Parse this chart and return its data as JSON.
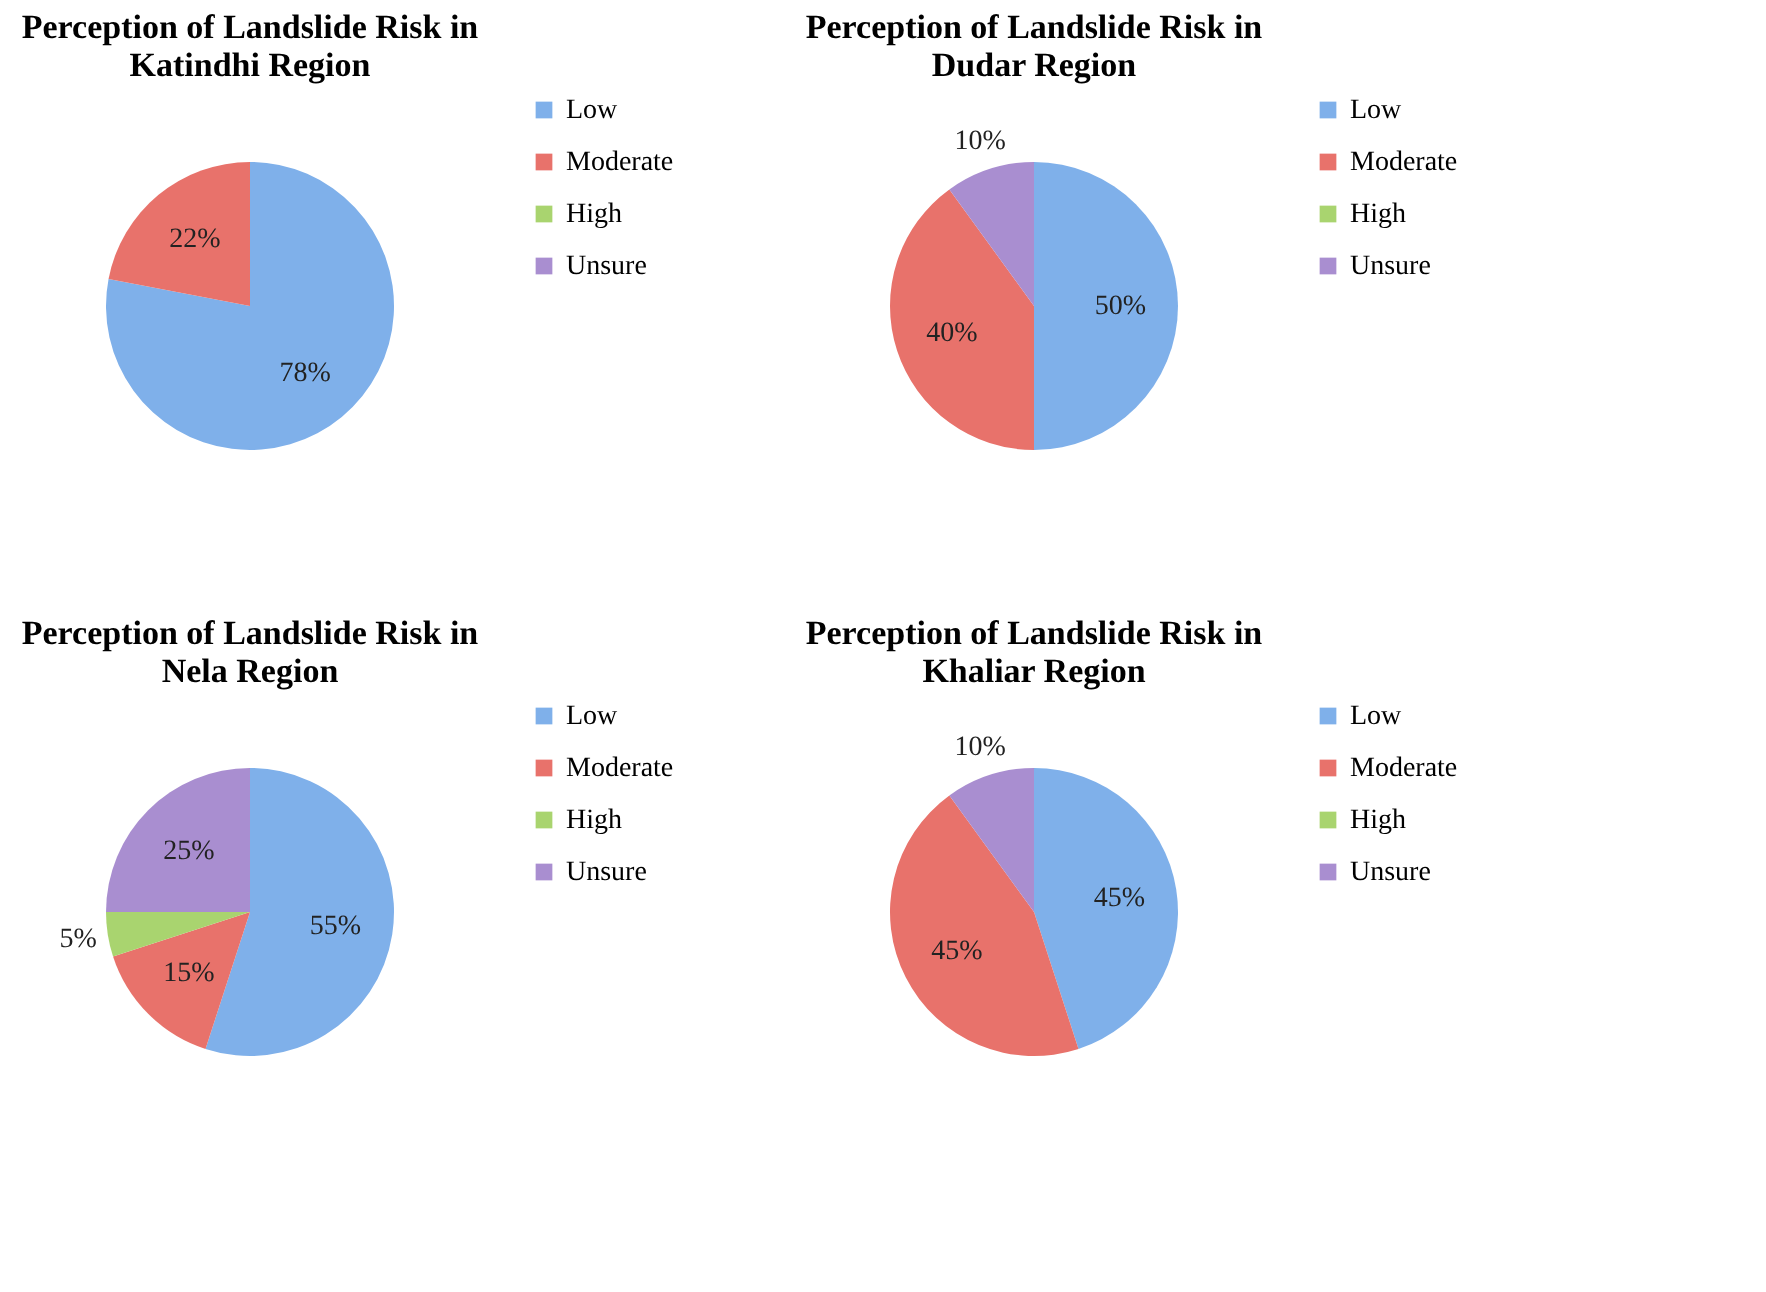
{
  "chart_data": [
    {
      "type": "pie",
      "title": [
        "Perception of Landslide Risk in",
        "Katindhi Region"
      ],
      "categories": [
        "Low",
        "Moderate",
        "High",
        "Unsure"
      ],
      "values": [
        78,
        22,
        0,
        0
      ],
      "colors": [
        "#7fb0ea",
        "#e8726b",
        "#a9d46f",
        "#a98ed0"
      ],
      "value_labels": [
        "78%",
        "22%",
        null,
        null
      ],
      "legend": "right"
    },
    {
      "type": "pie",
      "title": [
        "Perception of Landslide Risk in",
        "Dudar Region"
      ],
      "categories": [
        "Low",
        "Moderate",
        "High",
        "Unsure"
      ],
      "values": [
        50,
        40,
        0,
        10
      ],
      "colors": [
        "#7fb0ea",
        "#e8726b",
        "#a9d46f",
        "#a98ed0"
      ],
      "value_labels": [
        "50%",
        "40%",
        null,
        "10%"
      ],
      "legend": "right"
    },
    {
      "type": "pie",
      "title": [
        "Perception of Landslide Risk in",
        "Nela Region"
      ],
      "categories": [
        "Low",
        "Moderate",
        "High",
        "Unsure"
      ],
      "values": [
        55,
        15,
        5,
        25
      ],
      "colors": [
        "#7fb0ea",
        "#e8726b",
        "#a9d46f",
        "#a98ed0"
      ],
      "value_labels": [
        "55%",
        "15%",
        "5%",
        "25%"
      ],
      "legend": "right"
    },
    {
      "type": "pie",
      "title": [
        "Perception of Landslide Risk in",
        "Khaliar Region"
      ],
      "categories": [
        "Low",
        "Moderate",
        "High",
        "Unsure"
      ],
      "values": [
        45,
        45,
        0,
        10
      ],
      "colors": [
        "#7fb0ea",
        "#e8726b",
        "#a9d46f",
        "#a98ed0"
      ],
      "value_labels": [
        "45%",
        "45%",
        null,
        "10%"
      ],
      "legend": "right"
    }
  ]
}
